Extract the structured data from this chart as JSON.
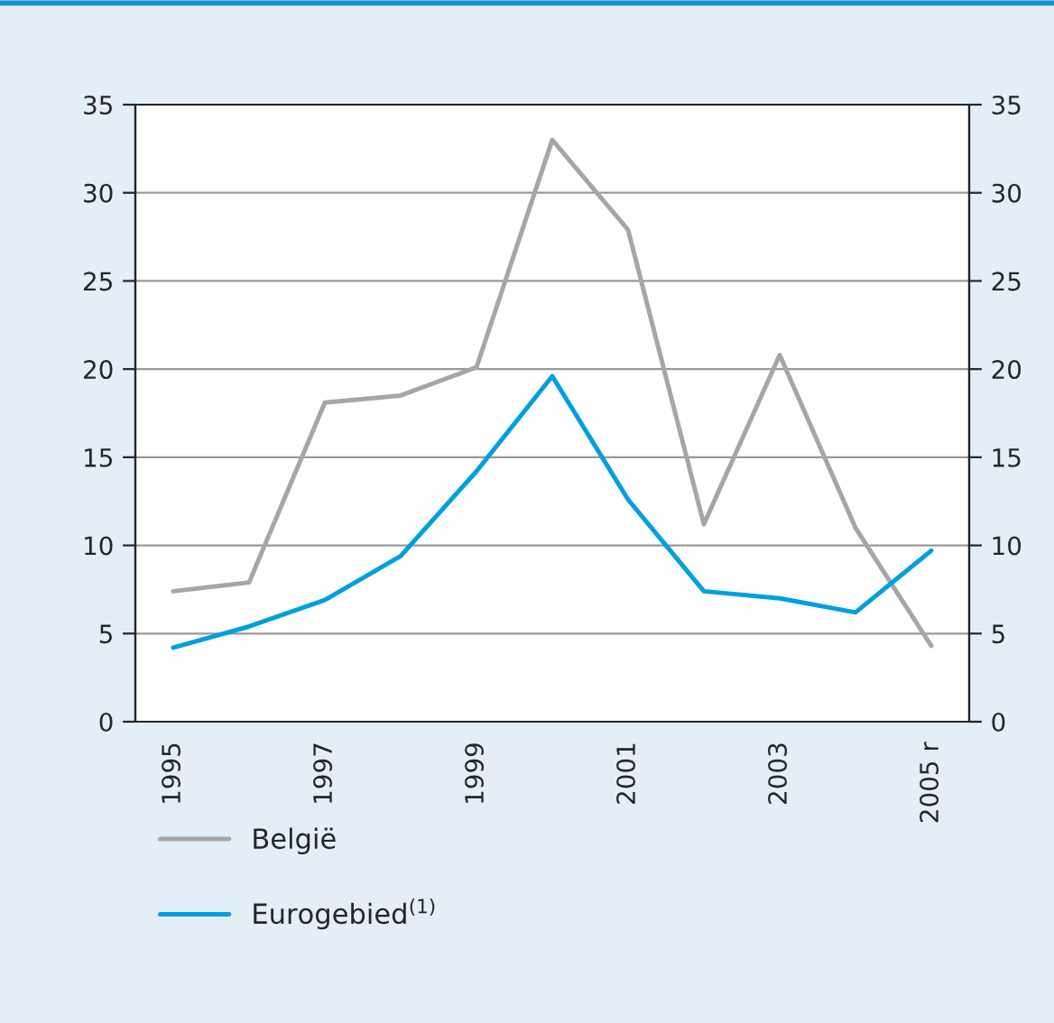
{
  "chart_data": {
    "type": "line",
    "categories": [
      "1995",
      null,
      "1997",
      null,
      "1999",
      null,
      "2001",
      null,
      "2003",
      null,
      "2005 r"
    ],
    "series": [
      {
        "name": "België",
        "color": "#a6a6a6",
        "values": [
          7.4,
          7.9,
          18.1,
          18.5,
          20.1,
          33.0,
          27.9,
          11.2,
          20.8,
          11.0,
          4.3
        ]
      },
      {
        "name": "Eurogebied$^{(1)}$",
        "color": "#00a0e0",
        "values": [
          4.2,
          5.4,
          6.9,
          9.4,
          14.2,
          19.6,
          12.6,
          7.4,
          7.0,
          6.2,
          9.7
        ]
      }
    ],
    "ylim": [
      0,
      35
    ],
    "yticks": [
      0,
      5,
      10,
      15,
      20,
      25,
      30,
      35
    ],
    "y2lim": [
      0,
      35
    ],
    "y2ticks": [
      0,
      5,
      10,
      15,
      20,
      25,
      30,
      35
    ],
    "grid": "y",
    "legend": "bottom",
    "marker": "none",
    "line_style": "solid"
  }
}
